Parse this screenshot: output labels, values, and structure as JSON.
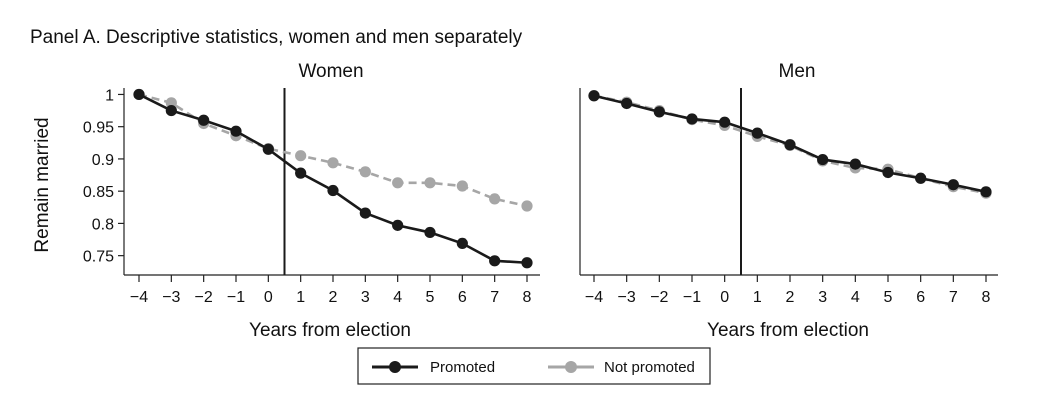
{
  "panel_title": "Panel A. Descriptive statistics, women and men separately",
  "legend": {
    "items": [
      {
        "label": "Promoted",
        "color": "#1a1a1a",
        "style": "solid"
      },
      {
        "label": "Not promoted",
        "color": "#a6a6a6",
        "style": "dashed"
      }
    ]
  },
  "chart_data": [
    {
      "type": "line",
      "title": "Women",
      "xlabel": "Years from election",
      "ylabel": "Remain married",
      "xlim": [
        -4,
        8
      ],
      "ylim": [
        0.72,
        1.01
      ],
      "x": [
        -4,
        -3,
        -2,
        -1,
        0,
        1,
        2,
        3,
        4,
        5,
        6,
        7,
        8
      ],
      "x_ticks": [
        -4,
        -3,
        -2,
        -1,
        0,
        1,
        2,
        3,
        4,
        5,
        6,
        7,
        8
      ],
      "x_tick_labels": [
        "−4",
        "−3",
        "−2",
        "−1",
        "0",
        "1",
        "2",
        "3",
        "4",
        "5",
        "6",
        "7",
        "8"
      ],
      "y_ticks": [
        1,
        0.95,
        0.9,
        0.85,
        0.8,
        0.75
      ],
      "y_tick_labels": [
        "1",
        "0.95",
        "0.9",
        "0.85",
        "0.8",
        "0.75"
      ],
      "vline_x": 0.5,
      "series": [
        {
          "name": "Promoted",
          "color": "#1a1a1a",
          "style": "solid",
          "values": [
            1.0,
            0.975,
            0.96,
            0.943,
            0.915,
            0.878,
            0.851,
            0.816,
            0.797,
            0.786,
            0.769,
            0.742,
            0.739
          ]
        },
        {
          "name": "Not promoted",
          "color": "#a6a6a6",
          "style": "dashed",
          "values": [
            1.0,
            0.987,
            0.955,
            0.936,
            0.916,
            0.905,
            0.894,
            0.88,
            0.863,
            0.863,
            0.858,
            0.838,
            0.827
          ]
        }
      ]
    },
    {
      "type": "line",
      "title": "Men",
      "xlabel": "Years from election",
      "ylabel": "",
      "xlim": [
        -4,
        8
      ],
      "ylim": [
        0.72,
        1.01
      ],
      "x": [
        -4,
        -3,
        -2,
        -1,
        0,
        1,
        2,
        3,
        4,
        5,
        6,
        7,
        8
      ],
      "x_ticks": [
        -4,
        -3,
        -2,
        -1,
        0,
        1,
        2,
        3,
        4,
        5,
        6,
        7,
        8
      ],
      "x_tick_labels": [
        "−4",
        "−3",
        "−2",
        "−1",
        "0",
        "1",
        "2",
        "3",
        "4",
        "5",
        "6",
        "7",
        "8"
      ],
      "y_ticks": [],
      "y_tick_labels": [],
      "vline_x": 0.5,
      "series": [
        {
          "name": "Promoted",
          "color": "#1a1a1a",
          "style": "solid",
          "values": [
            0.998,
            0.986,
            0.973,
            0.962,
            0.957,
            0.94,
            0.922,
            0.899,
            0.892,
            0.879,
            0.87,
            0.86,
            0.849
          ]
        },
        {
          "name": "Not promoted",
          "color": "#a6a6a6",
          "style": "dashed",
          "values": [
            0.998,
            0.988,
            0.975,
            0.961,
            0.952,
            0.935,
            0.921,
            0.897,
            0.886,
            0.884,
            0.87,
            0.857,
            0.847
          ]
        }
      ]
    }
  ]
}
